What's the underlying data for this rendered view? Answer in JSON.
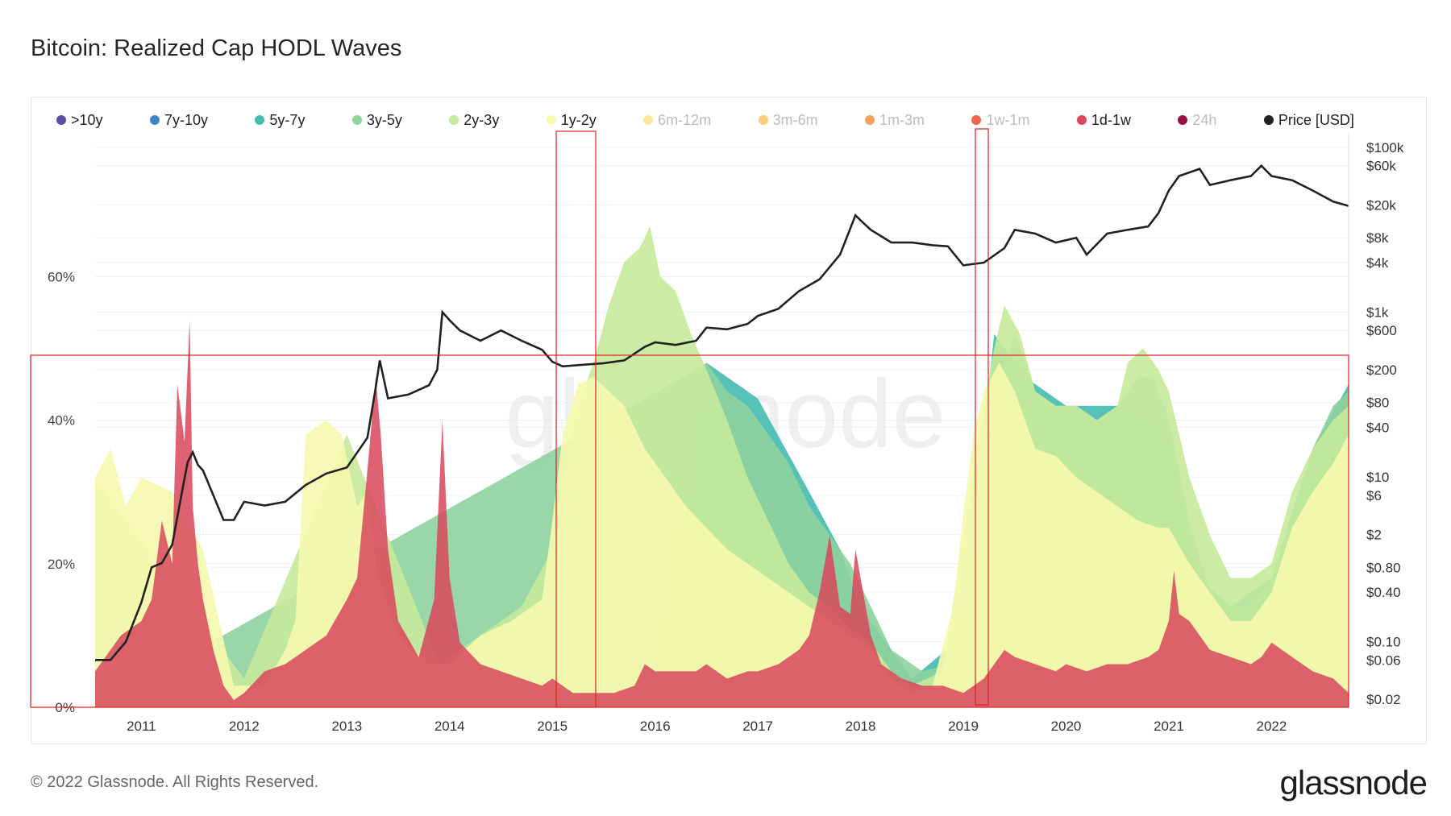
{
  "header": {
    "title": "Bitcoin: Realized Cap HODL Waves"
  },
  "footer": {
    "copyright": "© 2022 Glassnode. All Rights Reserved.",
    "brand": "glassnode"
  },
  "watermark": "glassnode",
  "legend": [
    {
      "label": ">10y",
      "color": "#5b4ea3",
      "dim": false
    },
    {
      "label": "7y-10y",
      "color": "#3c86c6",
      "dim": false
    },
    {
      "label": "5y-7y",
      "color": "#45bcb0",
      "dim": false
    },
    {
      "label": "3y-5y",
      "color": "#8fd39e",
      "dim": false
    },
    {
      "label": "2y-3y",
      "color": "#c6ea9c",
      "dim": false
    },
    {
      "label": "1y-2y",
      "color": "#f6f9ae",
      "dim": false
    },
    {
      "label": "6m-12m",
      "color": "#fbe89b",
      "dim": true
    },
    {
      "label": "3m-6m",
      "color": "#fccf7a",
      "dim": true
    },
    {
      "label": "1m-3m",
      "color": "#f9a25f",
      "dim": true
    },
    {
      "label": "1w-1m",
      "color": "#ee6548",
      "dim": true
    },
    {
      "label": "1d-1w",
      "color": "#d9475c",
      "dim": false
    },
    {
      "label": "24h",
      "color": "#9b0f46",
      "dim": true
    },
    {
      "label": "Price [USD]",
      "color": "#222222",
      "dim": false
    }
  ],
  "chart_data": {
    "type": "area",
    "title": "Bitcoin: Realized Cap HODL Waves",
    "xlabel": "",
    "ylabel": "",
    "grid": true,
    "legend_position": "top",
    "x_range": [
      2010.55,
      2022.75
    ],
    "x_ticks": [
      2011,
      2012,
      2013,
      2014,
      2015,
      2016,
      2017,
      2018,
      2019,
      2020,
      2021,
      2022
    ],
    "y_left": {
      "range": [
        0,
        80
      ],
      "ticks": [
        0,
        20,
        40,
        60
      ],
      "tick_labels": [
        "0%",
        "20%",
        "40%",
        "60%"
      ]
    },
    "y_right": {
      "scale": "log",
      "range": [
        0.016,
        150000
      ],
      "ticks": [
        100000,
        60000,
        20000,
        8000,
        4000,
        1000,
        600,
        200,
        80,
        40,
        10,
        6,
        2,
        0.8,
        0.4,
        0.1,
        0.06,
        0.02
      ],
      "tick_labels": [
        "$100k",
        "$60k",
        "$20k",
        "$8k",
        "$4k",
        "$1k",
        "$600",
        "$200",
        "$80",
        "$40",
        "$10",
        "$6",
        "$2",
        "$0.80",
        "$0.40",
        "$0.10",
        "$0.06",
        "$0.02"
      ]
    },
    "series": [
      {
        "name": "1d-1w",
        "color": "#d9475c",
        "x": [
          2010.55,
          2010.8,
          2011.0,
          2011.1,
          2011.2,
          2011.3,
          2011.35,
          2011.42,
          2011.47,
          2011.5,
          2011.55,
          2011.6,
          2011.7,
          2011.8,
          2011.9,
          2012.0,
          2012.2,
          2012.4,
          2012.6,
          2012.8,
          2013.0,
          2013.1,
          2013.2,
          2013.28,
          2013.33,
          2013.4,
          2013.5,
          2013.7,
          2013.85,
          2013.93,
          2014.0,
          2014.1,
          2014.3,
          2014.5,
          2014.7,
          2014.9,
          2015.0,
          2015.2,
          2015.4,
          2015.6,
          2015.8,
          2015.9,
          2016.0,
          2016.2,
          2016.4,
          2016.5,
          2016.7,
          2016.9,
          2017.0,
          2017.2,
          2017.4,
          2017.5,
          2017.6,
          2017.7,
          2017.8,
          2017.9,
          2017.95,
          2018.0,
          2018.1,
          2018.2,
          2018.4,
          2018.6,
          2018.8,
          2019.0,
          2019.2,
          2019.4,
          2019.5,
          2019.7,
          2019.9,
          2020.0,
          2020.2,
          2020.4,
          2020.6,
          2020.8,
          2020.9,
          2021.0,
          2021.05,
          2021.1,
          2021.2,
          2021.3,
          2021.4,
          2021.6,
          2021.8,
          2021.9,
          2022.0,
          2022.2,
          2022.4,
          2022.6,
          2022.75
        ],
        "values": [
          5,
          10,
          12,
          15,
          26,
          20,
          45,
          37,
          54,
          28,
          20,
          15,
          8,
          3,
          1,
          2,
          5,
          6,
          8,
          10,
          15,
          18,
          33,
          46,
          38,
          22,
          12,
          7,
          15,
          40,
          18,
          9,
          6,
          5,
          4,
          3,
          4,
          2,
          2,
          2,
          3,
          6,
          5,
          5,
          5,
          6,
          4,
          5,
          5,
          6,
          8,
          10,
          16,
          24,
          14,
          13,
          22,
          18,
          10,
          6,
          4,
          3,
          3,
          2,
          4,
          8,
          7,
          6,
          5,
          6,
          5,
          6,
          6,
          7,
          8,
          12,
          19,
          13,
          12,
          10,
          8,
          7,
          6,
          7,
          9,
          7,
          5,
          4,
          2
        ]
      },
      {
        "name": "1y-2y",
        "color": "#f6f9ae",
        "x": [
          2010.55,
          2010.7,
          2010.85,
          2011.0,
          2011.3,
          2011.6,
          2011.9,
          2012.2,
          2012.4,
          2012.5,
          2012.6,
          2012.8,
          2012.95,
          2013.1,
          2013.2,
          2013.3,
          2013.5,
          2013.8,
          2014.0,
          2014.3,
          2014.6,
          2014.9,
          2015.0,
          2015.1,
          2015.25,
          2015.4,
          2015.55,
          2015.7,
          2015.9,
          2016.1,
          2016.3,
          2016.5,
          2016.7,
          2016.9,
          2017.1,
          2017.3,
          2017.5,
          2017.7,
          2017.9,
          2018.1,
          2018.3,
          2018.5,
          2018.7,
          2018.9,
          2019.0,
          2019.1,
          2019.2,
          2019.35,
          2019.5,
          2019.7,
          2019.9,
          2020.1,
          2020.3,
          2020.5,
          2020.7,
          2020.9,
          2021.0,
          2021.2,
          2021.4,
          2021.6,
          2021.8,
          2022.0,
          2022.2,
          2022.4,
          2022.6,
          2022.75
        ],
        "values": [
          32,
          36,
          28,
          32,
          30,
          22,
          3,
          3,
          8,
          12,
          38,
          40,
          38,
          28,
          30,
          18,
          10,
          6,
          6,
          10,
          12,
          15,
          26,
          38,
          45,
          46,
          44,
          42,
          36,
          32,
          28,
          25,
          22,
          20,
          18,
          16,
          14,
          12,
          10,
          8,
          4,
          2,
          3,
          14,
          27,
          38,
          44,
          48,
          44,
          36,
          35,
          32,
          30,
          28,
          26,
          25,
          25,
          20,
          16,
          12,
          12,
          16,
          25,
          30,
          34,
          38
        ]
      },
      {
        "name": "2y-3y",
        "color": "#c6ea9c",
        "x": [
          2010.55,
          2012.0,
          2013.0,
          2013.9,
          2014.3,
          2014.7,
          2015.0,
          2015.2,
          2015.4,
          2015.55,
          2015.7,
          2015.85,
          2015.95,
          2016.05,
          2016.2,
          2016.35,
          2016.5,
          2016.7,
          2016.9,
          2017.1,
          2017.3,
          2017.5,
          2017.7,
          2017.9,
          2018.1,
          2018.3,
          2018.5,
          2018.8,
          2019.0,
          2019.2,
          2019.3,
          2019.4,
          2019.55,
          2019.7,
          2019.9,
          2020.1,
          2020.3,
          2020.5,
          2020.6,
          2020.75,
          2020.9,
          2021.0,
          2021.2,
          2021.4,
          2021.6,
          2021.8,
          2022.0,
          2022.2,
          2022.4,
          2022.6,
          2022.75
        ],
        "values": [
          32,
          4,
          38,
          6,
          10,
          14,
          22,
          40,
          48,
          56,
          62,
          64,
          67,
          60,
          58,
          52,
          47,
          40,
          32,
          26,
          20,
          16,
          14,
          11,
          9,
          5,
          3,
          5,
          24,
          42,
          50,
          56,
          52,
          44,
          42,
          42,
          40,
          42,
          48,
          50,
          47,
          44,
          32,
          24,
          18,
          18,
          20,
          30,
          36,
          40,
          42
        ]
      },
      {
        "name": "3y-5y",
        "color": "#8fd39e",
        "x": [
          2010.55,
          2016.4,
          2016.5,
          2016.7,
          2016.9,
          2017.1,
          2017.3,
          2017.5,
          2017.7,
          2017.9,
          2018.1,
          2018.3,
          2018.6,
          2018.9,
          2019.1,
          2019.3,
          2019.5,
          2019.7,
          2019.9,
          2020.1,
          2020.3,
          2020.5,
          2020.7,
          2020.85,
          2021.0,
          2021.2,
          2021.4,
          2021.6,
          2021.8,
          2022.0,
          2022.2,
          2022.4,
          2022.6,
          2022.75
        ],
        "values": [
          0,
          47,
          48,
          44,
          42,
          38,
          34,
          28,
          24,
          20,
          14,
          8,
          5,
          6,
          22,
          42,
          52,
          44,
          42,
          42,
          40,
          42,
          46,
          46,
          40,
          26,
          16,
          14,
          14,
          18,
          26,
          36,
          42,
          44
        ]
      },
      {
        "name": "5y-7y",
        "color": "#45bcb0",
        "x": [
          2010.55,
          2016.0,
          2016.5,
          2017.0,
          2017.5,
          2017.8,
          2018.0,
          2018.5,
          2019.0,
          2019.3,
          2019.6,
          2020.0,
          2020.5,
          2021.0,
          2021.3,
          2021.6,
          2022.0,
          2022.4,
          2022.75
        ],
        "values": [
          0,
          0,
          48,
          43,
          30,
          22,
          14,
          4,
          10,
          52,
          46,
          42,
          42,
          38,
          18,
          14,
          18,
          36,
          45
        ]
      }
    ],
    "price": {
      "name": "Price [USD]",
      "color": "#222222",
      "x": [
        2010.55,
        2010.7,
        2010.85,
        2011.0,
        2011.1,
        2011.2,
        2011.3,
        2011.4,
        2011.45,
        2011.5,
        2011.55,
        2011.6,
        2011.7,
        2011.8,
        2011.9,
        2012.0,
        2012.2,
        2012.4,
        2012.6,
        2012.8,
        2013.0,
        2013.2,
        2013.28,
        2013.32,
        2013.4,
        2013.6,
        2013.8,
        2013.88,
        2013.93,
        2014.0,
        2014.1,
        2014.3,
        2014.5,
        2014.7,
        2014.9,
        2015.0,
        2015.1,
        2015.3,
        2015.5,
        2015.7,
        2015.9,
        2016.0,
        2016.2,
        2016.4,
        2016.5,
        2016.7,
        2016.9,
        2017.0,
        2017.2,
        2017.4,
        2017.6,
        2017.8,
        2017.95,
        2018.0,
        2018.1,
        2018.3,
        2018.5,
        2018.7,
        2018.85,
        2019.0,
        2019.2,
        2019.4,
        2019.5,
        2019.7,
        2019.9,
        2020.1,
        2020.2,
        2020.4,
        2020.6,
        2020.8,
        2020.9,
        2021.0,
        2021.1,
        2021.3,
        2021.4,
        2021.6,
        2021.8,
        2021.9,
        2022.0,
        2022.2,
        2022.4,
        2022.6,
        2022.75
      ],
      "values": [
        0.06,
        0.06,
        0.1,
        0.3,
        0.8,
        0.9,
        1.5,
        7,
        15,
        20,
        14,
        12,
        6,
        3,
        3,
        5,
        4.5,
        5,
        8,
        11,
        13,
        30,
        120,
        260,
        90,
        100,
        130,
        200,
        1000,
        800,
        600,
        450,
        600,
        450,
        350,
        250,
        220,
        230,
        240,
        260,
        380,
        430,
        400,
        450,
        650,
        620,
        720,
        900,
        1100,
        1800,
        2500,
        5000,
        15000,
        13000,
        10000,
        7000,
        7000,
        6500,
        6300,
        3700,
        4000,
        6000,
        10000,
        9000,
        7000,
        8000,
        5000,
        9000,
        10000,
        11000,
        16000,
        30000,
        45000,
        55000,
        35000,
        40000,
        45000,
        60000,
        45000,
        40000,
        30000,
        22000,
        19500
      ]
    }
  }
}
